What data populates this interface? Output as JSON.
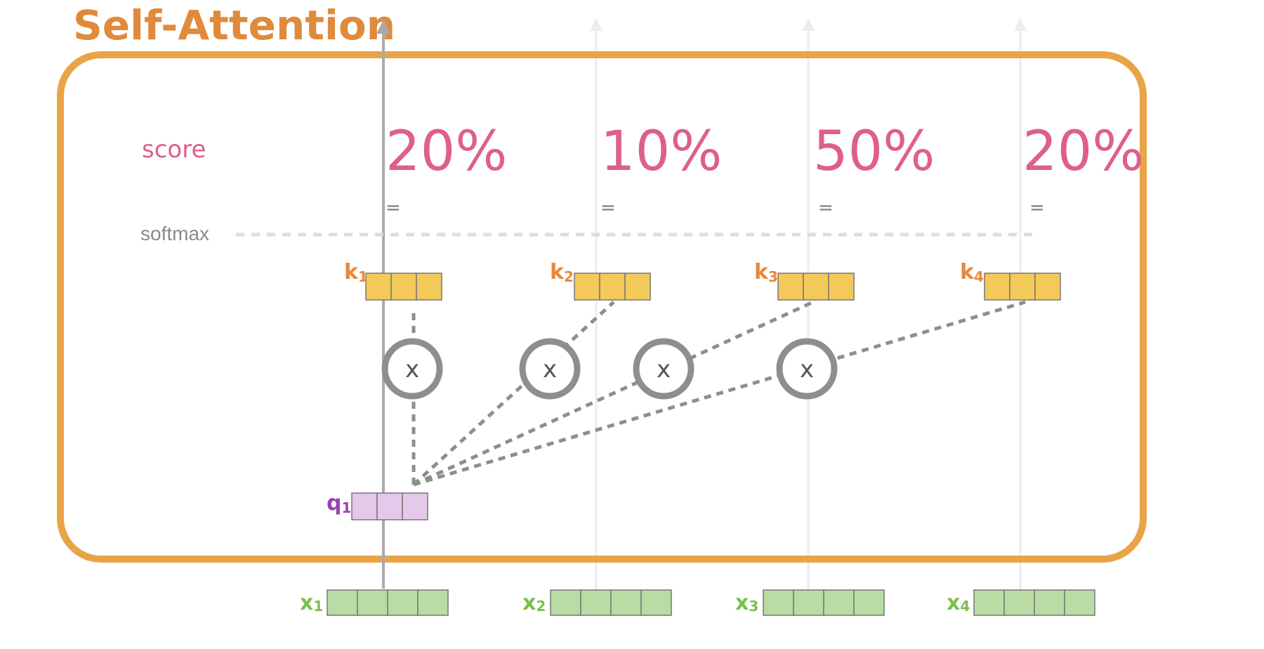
{
  "title": "Self-Attention",
  "score_label": "score",
  "softmax_label": "softmax",
  "equals_sign": "=",
  "multiply_symbol": "x",
  "scores": [
    "20%",
    "10%",
    "50%",
    "20%"
  ],
  "keys": [
    {
      "letter": "k",
      "sub": "1"
    },
    {
      "letter": "k",
      "sub": "2"
    },
    {
      "letter": "k",
      "sub": "3"
    },
    {
      "letter": "k",
      "sub": "4"
    }
  ],
  "query": {
    "letter": "q",
    "sub": "1"
  },
  "inputs": [
    {
      "letter": "x",
      "sub": "1"
    },
    {
      "letter": "x",
      "sub": "2"
    },
    {
      "letter": "x",
      "sub": "3"
    },
    {
      "letter": "x",
      "sub": "4"
    }
  ],
  "colors": {
    "frame": "#e9a447",
    "title": "#e08a3c",
    "score": "#de5f8c",
    "key_fill": "#f3c95a",
    "key_label": "#e8883a",
    "query_fill": "#e4c9ea",
    "query_label": "#9e3fb4",
    "input_fill": "#b8dca3",
    "input_label": "#7cbf4e",
    "connector": "#8e8e8e",
    "arrow_active": "#aaaaaa",
    "arrow_faint": "#ececec",
    "softmax_text": "#8a8a8a",
    "softmax_line": "#dddddd"
  }
}
